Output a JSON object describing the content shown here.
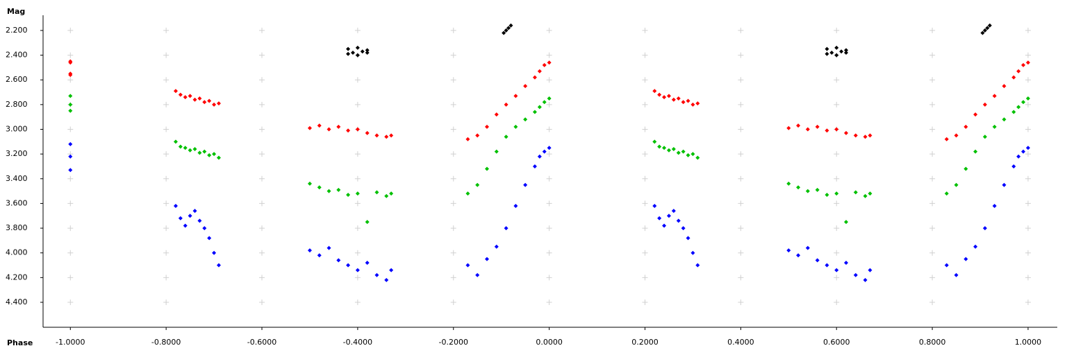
{
  "chart_data": {
    "type": "scatter",
    "x_label": "Phase",
    "y_label": "Mag",
    "xlim": [
      -1.057,
      1.061
    ],
    "ylim": [
      2.077,
      4.602
    ],
    "y_inverted": true,
    "grid": "cross",
    "xticks": [
      {
        "value": -1.0,
        "label": "-1.0000"
      },
      {
        "value": -0.8,
        "label": "-0.8000"
      },
      {
        "value": -0.6,
        "label": "-0.6000"
      },
      {
        "value": -0.4,
        "label": "-0.4000"
      },
      {
        "value": -0.2,
        "label": "-0.2000"
      },
      {
        "value": 0.0,
        "label": "0.0000"
      },
      {
        "value": 0.2,
        "label": "0.2000"
      },
      {
        "value": 0.4,
        "label": "0.4000"
      },
      {
        "value": 0.6,
        "label": "0.6000"
      },
      {
        "value": 0.8,
        "label": "0.8000"
      },
      {
        "value": 1.0,
        "label": "1.0000"
      }
    ],
    "yticks": [
      {
        "value": 2.2,
        "label": "2.200"
      },
      {
        "value": 2.4,
        "label": "2.400"
      },
      {
        "value": 2.6,
        "label": "2.600"
      },
      {
        "value": 2.8,
        "label": "2.800"
      },
      {
        "value": 3.0,
        "label": "3.000"
      },
      {
        "value": 3.2,
        "label": "3.200"
      },
      {
        "value": 3.4,
        "label": "3.400"
      },
      {
        "value": 3.6,
        "label": "3.600"
      },
      {
        "value": 3.8,
        "label": "3.800"
      },
      {
        "value": 4.0,
        "label": "4.000"
      },
      {
        "value": 4.2,
        "label": "4.200"
      },
      {
        "value": 4.4,
        "label": "4.400"
      }
    ],
    "series": [
      {
        "color": "#ff0000",
        "x": [
          -1.0,
          -1.0,
          -1.0,
          -1.0,
          -0.78,
          -0.77,
          -0.76,
          -0.75,
          -0.74,
          -0.73,
          -0.72,
          -0.71,
          -0.7,
          -0.69,
          -0.5,
          -0.48,
          -0.46,
          -0.44,
          -0.42,
          -0.4,
          -0.38,
          -0.36,
          -0.34,
          -0.33,
          -0.17,
          -0.15,
          -0.13,
          -0.11,
          -0.09,
          -0.07,
          -0.05,
          -0.03,
          -0.02,
          -0.01,
          0.0,
          0.22,
          0.23,
          0.24,
          0.25,
          0.26,
          0.27,
          0.28,
          0.29,
          0.3,
          0.31,
          0.5,
          0.52,
          0.54,
          0.56,
          0.58,
          0.6,
          0.62,
          0.64,
          0.66,
          0.67,
          0.83,
          0.85,
          0.87,
          0.89,
          0.91,
          0.93,
          0.95,
          0.97,
          0.98,
          0.99,
          1.0
        ],
        "values": [
          2.45,
          2.46,
          2.55,
          2.56,
          2.69,
          2.72,
          2.74,
          2.73,
          2.76,
          2.75,
          2.78,
          2.77,
          2.8,
          2.79,
          2.99,
          2.97,
          3.0,
          2.98,
          3.01,
          3.0,
          3.03,
          3.05,
          3.06,
          3.05,
          3.08,
          3.05,
          2.98,
          2.88,
          2.8,
          2.73,
          2.65,
          2.58,
          2.53,
          2.48,
          2.46,
          2.69,
          2.72,
          2.74,
          2.73,
          2.76,
          2.75,
          2.78,
          2.77,
          2.8,
          2.79,
          2.99,
          2.97,
          3.0,
          2.98,
          3.01,
          3.0,
          3.03,
          3.05,
          3.06,
          3.05,
          3.08,
          3.05,
          2.98,
          2.88,
          2.8,
          2.73,
          2.65,
          2.58,
          2.53,
          2.48,
          2.46
        ]
      },
      {
        "color": "#00c000",
        "x": [
          -1.0,
          -1.0,
          -1.0,
          -0.78,
          -0.77,
          -0.76,
          -0.75,
          -0.74,
          -0.73,
          -0.72,
          -0.71,
          -0.7,
          -0.69,
          -0.5,
          -0.48,
          -0.46,
          -0.44,
          -0.42,
          -0.4,
          -0.38,
          -0.36,
          -0.34,
          -0.33,
          -0.17,
          -0.15,
          -0.13,
          -0.11,
          -0.09,
          -0.07,
          -0.05,
          -0.03,
          -0.02,
          -0.01,
          0.0,
          0.22,
          0.23,
          0.24,
          0.25,
          0.26,
          0.27,
          0.28,
          0.29,
          0.3,
          0.31,
          0.5,
          0.52,
          0.54,
          0.56,
          0.58,
          0.6,
          0.62,
          0.64,
          0.66,
          0.67,
          0.83,
          0.85,
          0.87,
          0.89,
          0.91,
          0.93,
          0.95,
          0.97,
          0.98,
          0.99,
          1.0
        ],
        "values": [
          2.73,
          2.8,
          2.85,
          3.1,
          3.14,
          3.15,
          3.17,
          3.16,
          3.19,
          3.18,
          3.21,
          3.2,
          3.23,
          3.44,
          3.47,
          3.5,
          3.49,
          3.53,
          3.52,
          3.75,
          3.51,
          3.54,
          3.52,
          3.52,
          3.45,
          3.32,
          3.18,
          3.06,
          2.98,
          2.92,
          2.86,
          2.82,
          2.78,
          2.75,
          3.1,
          3.14,
          3.15,
          3.17,
          3.16,
          3.19,
          3.18,
          3.21,
          3.2,
          3.23,
          3.44,
          3.47,
          3.5,
          3.49,
          3.53,
          3.52,
          3.75,
          3.51,
          3.54,
          3.52,
          3.52,
          3.45,
          3.32,
          3.18,
          3.06,
          2.98,
          2.92,
          2.86,
          2.82,
          2.78,
          2.75
        ]
      },
      {
        "color": "#0000ff",
        "x": [
          -1.0,
          -1.0,
          -1.0,
          -0.78,
          -0.77,
          -0.76,
          -0.75,
          -0.74,
          -0.73,
          -0.72,
          -0.71,
          -0.7,
          -0.69,
          -0.5,
          -0.48,
          -0.46,
          -0.44,
          -0.42,
          -0.4,
          -0.38,
          -0.36,
          -0.34,
          -0.33,
          -0.17,
          -0.15,
          -0.13,
          -0.11,
          -0.09,
          -0.07,
          -0.05,
          -0.03,
          -0.02,
          -0.01,
          0.0,
          0.22,
          0.23,
          0.24,
          0.25,
          0.26,
          0.27,
          0.28,
          0.29,
          0.3,
          0.31,
          0.5,
          0.52,
          0.54,
          0.56,
          0.58,
          0.6,
          0.62,
          0.64,
          0.66,
          0.67,
          0.83,
          0.85,
          0.87,
          0.89,
          0.91,
          0.93,
          0.95,
          0.97,
          0.98,
          0.99,
          1.0
        ],
        "values": [
          3.12,
          3.22,
          3.33,
          3.62,
          3.72,
          3.78,
          3.7,
          3.66,
          3.74,
          3.8,
          3.88,
          4.0,
          4.1,
          3.98,
          4.02,
          3.96,
          4.06,
          4.1,
          4.14,
          4.08,
          4.18,
          4.22,
          4.14,
          4.1,
          4.18,
          4.05,
          3.95,
          3.8,
          3.62,
          3.45,
          3.3,
          3.22,
          3.18,
          3.15,
          3.62,
          3.72,
          3.78,
          3.7,
          3.66,
          3.74,
          3.8,
          3.88,
          4.0,
          4.1,
          3.98,
          4.02,
          3.96,
          4.06,
          4.1,
          4.14,
          4.08,
          4.18,
          4.22,
          4.14,
          4.1,
          4.18,
          4.05,
          3.95,
          3.8,
          3.62,
          3.45,
          3.3,
          3.22,
          3.18,
          3.15
        ]
      },
      {
        "color": "#000000",
        "x": [
          -0.42,
          -0.41,
          -0.4,
          -0.39,
          -0.38,
          -0.42,
          -0.4,
          -0.38,
          -0.095,
          -0.09,
          -0.085,
          -0.08,
          0.58,
          0.59,
          0.6,
          0.61,
          0.62,
          0.58,
          0.6,
          0.62,
          0.905,
          0.91,
          0.915,
          0.92
        ],
        "values": [
          2.35,
          2.38,
          2.34,
          2.37,
          2.36,
          2.39,
          2.4,
          2.38,
          2.22,
          2.2,
          2.18,
          2.16,
          2.35,
          2.38,
          2.34,
          2.37,
          2.36,
          2.39,
          2.4,
          2.38,
          2.22,
          2.2,
          2.18,
          2.16
        ]
      }
    ]
  }
}
